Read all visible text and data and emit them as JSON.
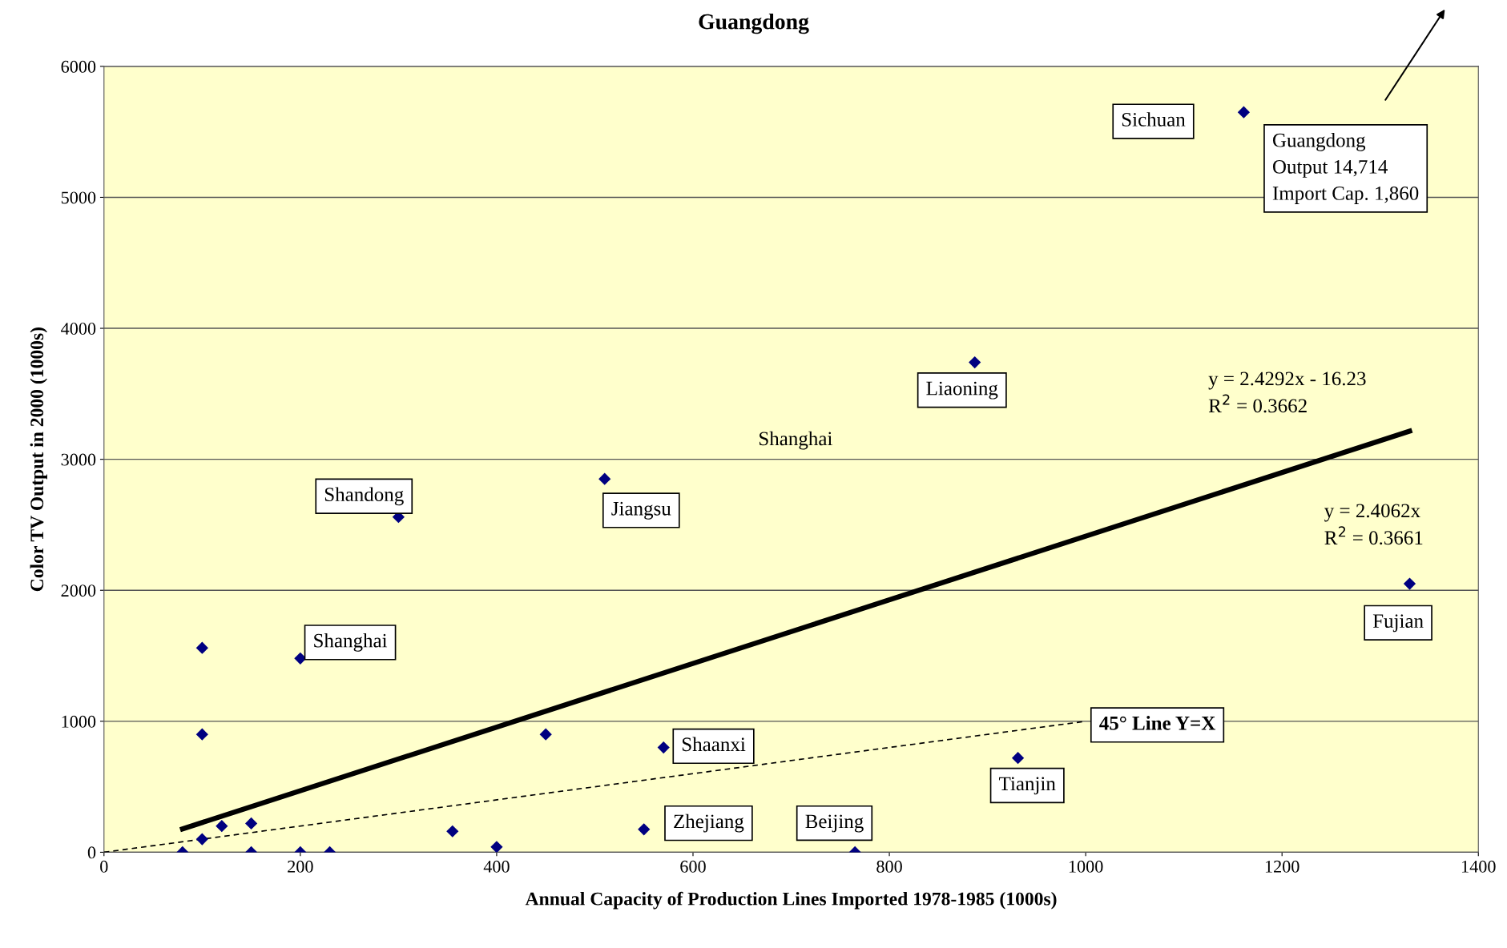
{
  "chart_data": {
    "type": "scatter",
    "title": "Guangdong",
    "xlabel": "Annual Capacity of Production Lines Imported 1978-1985 (1000s)",
    "ylabel": "Color TV Output in 2000 (1000s)",
    "x": [
      80,
      100,
      100,
      100,
      120,
      150,
      150,
      200,
      200,
      230,
      300,
      355,
      400,
      450,
      510,
      550,
      570,
      765,
      887,
      931,
      1161,
      1330
    ],
    "series": [
      {
        "color": "#000080",
        "marker": "diamond",
        "values": [
          0,
          1560,
          900,
          100,
          200,
          220,
          0,
          1480,
          0,
          0,
          2560,
          160,
          40,
          900,
          2850,
          175,
          800,
          0,
          3740,
          720,
          5650,
          2050
        ]
      },
      {
        "type": "line",
        "color": "#000000",
        "line_style": "solid",
        "x": [
          80,
          1330
        ],
        "values": [
          178,
          3215
        ]
      },
      {
        "type": "line",
        "color": "#000000",
        "line_style": "dashed",
        "x": [
          0,
          1000
        ],
        "values": [
          0,
          1000
        ]
      }
    ],
    "xlim": [
      0,
      1400
    ],
    "xticks": [
      0,
      200,
      400,
      600,
      800,
      1000,
      1200,
      1400
    ],
    "ylim": [
      0,
      6000
    ],
    "yticks": [
      0,
      1000,
      2000,
      3000,
      4000,
      5000,
      6000
    ],
    "grid": "y",
    "legend": false,
    "annotations": [
      "Sichuan",
      "Guangdong\nOutput 14,714\nImport Cap. 1,860",
      "Liaoning",
      "Shanghai",
      "y = 2.4292x - 16.23\nR$^{2}$ = 0.3662",
      "y = 2.4062x\nR$^{2}$ = 0.3661",
      "Shandong",
      "Jiangsu",
      "Shanghai",
      "Fujian",
      "45° Line Y=X",
      "Shaanxi",
      "Tianjin",
      "Zhejiang",
      "Beijing"
    ]
  }
}
